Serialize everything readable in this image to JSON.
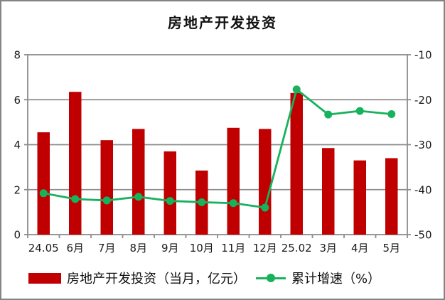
{
  "window": {
    "background": "#ffffff",
    "border_color": "#848484"
  },
  "chart_data": {
    "type": "bar",
    "title": "房地产开发投资",
    "categories": [
      "24.05",
      "6月",
      "7月",
      "8月",
      "9月",
      "10月",
      "11月",
      "12月",
      "25.02",
      "3月",
      "4月",
      "5月"
    ],
    "series": [
      {
        "name": "房地产开发投资（当月，亿元）",
        "type": "bar",
        "axis": "left",
        "color": "#C00000",
        "values": [
          4.55,
          6.35,
          4.2,
          4.7,
          3.7,
          2.85,
          4.75,
          4.7,
          6.3,
          3.85,
          3.3,
          3.4
        ]
      },
      {
        "name": "累计增速（%）",
        "type": "line",
        "axis": "right",
        "color": "#17B25C",
        "values": [
          -40.8,
          -42.1,
          -42.4,
          -41.6,
          -42.5,
          -42.8,
          -43.0,
          -44.0,
          -17.7,
          -23.3,
          -22.5,
          -23.2
        ]
      }
    ],
    "left_axis": {
      "min": 0,
      "max": 8,
      "step": 2,
      "ticks": [
        "8",
        "6",
        "4",
        "2",
        "0"
      ]
    },
    "right_axis": {
      "min": -50,
      "max": -10,
      "step": 10,
      "ticks": [
        "-10",
        "-20",
        "-30",
        "-40",
        "-50"
      ]
    },
    "grid": true,
    "gridline_color": "#8C8C8C",
    "legend_position": "bottom"
  }
}
